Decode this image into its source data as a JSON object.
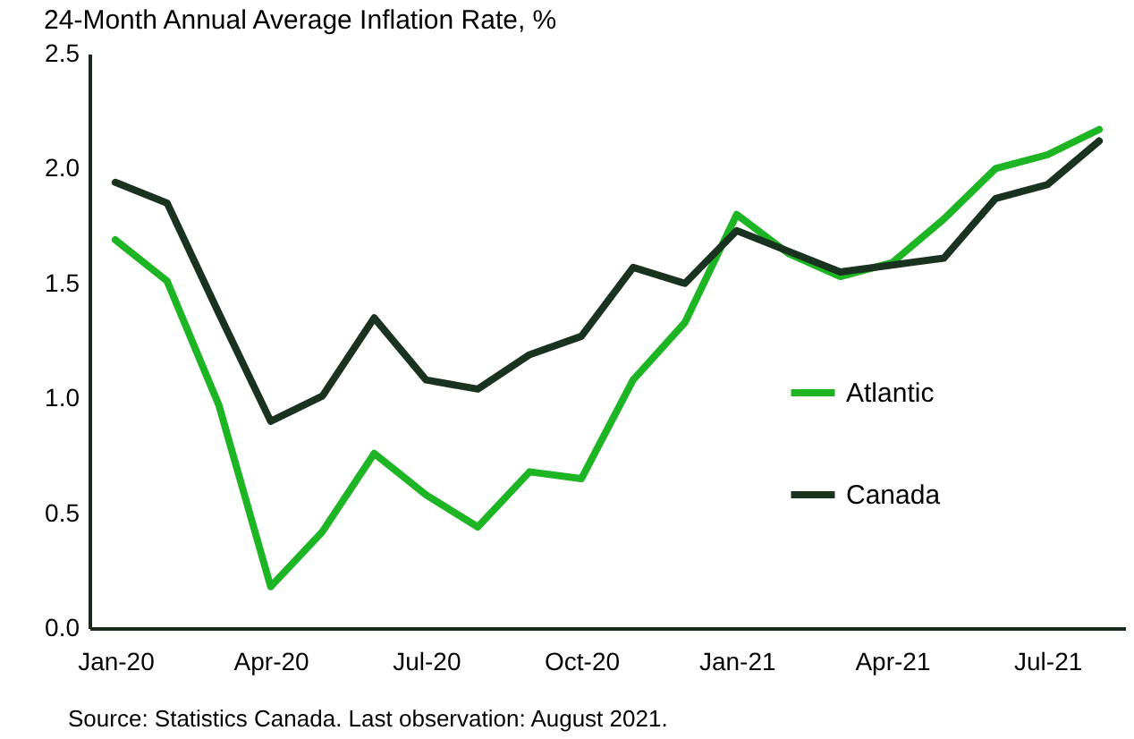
{
  "chart_data": {
    "type": "line",
    "title": "24-Month Annual Average Inflation Rate, %",
    "categories": [
      "Jan-20",
      null,
      null,
      "Apr-20",
      null,
      null,
      "Jul-20",
      null,
      null,
      "Oct-20",
      null,
      null,
      "Jan-21",
      null,
      null,
      "Apr-21",
      null,
      null,
      "Jul-21",
      null
    ],
    "series": [
      {
        "name": "Atlantic",
        "color": "#1db524",
        "values": [
          1.69,
          1.51,
          0.97,
          0.18,
          0.42,
          0.76,
          0.58,
          0.44,
          0.68,
          0.65,
          1.08,
          1.33,
          1.8,
          1.63,
          1.53,
          1.59,
          1.78,
          2.0,
          2.06,
          2.17
        ]
      },
      {
        "name": "Canada",
        "color": "#1a3320",
        "values": [
          1.94,
          1.85,
          1.37,
          0.9,
          1.01,
          1.35,
          1.08,
          1.04,
          1.19,
          1.27,
          1.57,
          1.5,
          1.73,
          1.64,
          1.55,
          1.58,
          1.61,
          1.87,
          1.93,
          2.12
        ]
      }
    ],
    "ylim": [
      0,
      2.5
    ],
    "yticks": [
      {
        "value": 0,
        "label": "0.0"
      },
      0.5,
      {
        "value": 1,
        "label": "1.0"
      },
      1.5,
      {
        "value": 2,
        "label": "2.0"
      },
      2.5
    ],
    "grid": false,
    "legend": "right",
    "marker": "none",
    "line_style": "solid",
    "annotations": [
      "Source: Statistics Canada. Last observation: August 2021."
    ]
  }
}
